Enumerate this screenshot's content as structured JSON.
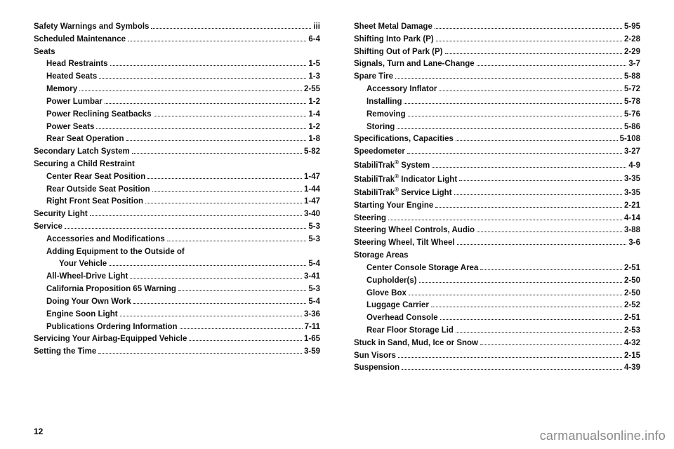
{
  "pageNumber": "12",
  "watermark": "carmanualsonline.info",
  "left": [
    {
      "t": "Safety Warnings and Symbols",
      "p": "iii",
      "i": 0
    },
    {
      "t": "Scheduled Maintenance",
      "p": "6-4",
      "i": 0
    },
    {
      "t": "Seats",
      "i": 0
    },
    {
      "t": "Head Restraints",
      "p": "1-5",
      "i": 1
    },
    {
      "t": "Heated Seats",
      "p": "1-3",
      "i": 1
    },
    {
      "t": "Memory",
      "p": "2-55",
      "i": 1
    },
    {
      "t": "Power Lumbar",
      "p": "1-2",
      "i": 1
    },
    {
      "t": "Power Reclining Seatbacks",
      "p": "1-4",
      "i": 1
    },
    {
      "t": "Power Seats",
      "p": "1-2",
      "i": 1
    },
    {
      "t": "Rear Seat Operation",
      "p": "1-8",
      "i": 1
    },
    {
      "t": "Secondary Latch System",
      "p": "5-82",
      "i": 0
    },
    {
      "t": "Securing a Child Restraint",
      "i": 0
    },
    {
      "t": "Center Rear Seat Position",
      "p": "1-47",
      "i": 1
    },
    {
      "t": "Rear Outside Seat Position",
      "p": "1-44",
      "i": 1
    },
    {
      "t": "Right Front Seat Position",
      "p": "1-47",
      "i": 1
    },
    {
      "t": "Security Light",
      "p": "3-40",
      "i": 0
    },
    {
      "t": "Service",
      "p": "5-3",
      "i": 0
    },
    {
      "t": "Accessories and Modifications",
      "p": "5-3",
      "i": 1
    },
    {
      "t": "Adding Equipment to the Outside of",
      "i": 1
    },
    {
      "t": "Your Vehicle",
      "p": "5-4",
      "i": 2
    },
    {
      "t": "All-Wheel-Drive Light",
      "p": "3-41",
      "i": 1
    },
    {
      "t": "California Proposition 65 Warning",
      "p": "5-3",
      "i": 1
    },
    {
      "t": "Doing Your Own Work",
      "p": "5-4",
      "i": 1
    },
    {
      "t": "Engine Soon Light",
      "p": "3-36",
      "i": 1
    },
    {
      "t": "Publications Ordering Information",
      "p": "7-11",
      "i": 1
    },
    {
      "t": "Servicing Your Airbag-Equipped Vehicle",
      "p": "1-65",
      "i": 0
    },
    {
      "t": "Setting the Time",
      "p": "3-59",
      "i": 0
    }
  ],
  "right": [
    {
      "t": "Sheet Metal Damage",
      "p": "5-95",
      "i": 0
    },
    {
      "t": "Shifting Into Park (P)",
      "p": "2-28",
      "i": 0
    },
    {
      "t": "Shifting Out of Park (P)",
      "p": "2-29",
      "i": 0
    },
    {
      "t": "Signals, Turn and Lane-Change",
      "p": "3-7",
      "i": 0
    },
    {
      "t": "Spare Tire",
      "p": "5-88",
      "i": 0
    },
    {
      "t": "Accessory Inflator",
      "p": "5-72",
      "i": 1
    },
    {
      "t": "Installing",
      "p": "5-78",
      "i": 1
    },
    {
      "t": "Removing",
      "p": "5-76",
      "i": 1
    },
    {
      "t": "Storing",
      "p": "5-86",
      "i": 1
    },
    {
      "t": "Specifications, Capacities",
      "p": "5-108",
      "i": 0
    },
    {
      "t": "Speedometer",
      "p": "3-27",
      "i": 0
    },
    {
      "t": "StabiliTrak® System",
      "p": "4-9",
      "i": 0
    },
    {
      "t": "StabiliTrak® Indicator Light",
      "p": "3-35",
      "i": 0
    },
    {
      "t": "StabiliTrak® Service Light",
      "p": "3-35",
      "i": 0
    },
    {
      "t": "Starting Your Engine",
      "p": "2-21",
      "i": 0
    },
    {
      "t": "Steering",
      "p": "4-14",
      "i": 0
    },
    {
      "t": "Steering Wheel Controls, Audio",
      "p": "3-88",
      "i": 0
    },
    {
      "t": "Steering Wheel, Tilt Wheel",
      "p": "3-6",
      "i": 0
    },
    {
      "t": "Storage Areas",
      "i": 0
    },
    {
      "t": "Center Console Storage Area",
      "p": "2-51",
      "i": 1
    },
    {
      "t": "Cupholder(s)",
      "p": "2-50",
      "i": 1
    },
    {
      "t": "Glove Box",
      "p": "2-50",
      "i": 1
    },
    {
      "t": "Luggage Carrier",
      "p": "2-52",
      "i": 1
    },
    {
      "t": "Overhead Console",
      "p": "2-51",
      "i": 1
    },
    {
      "t": "Rear Floor Storage Lid",
      "p": "2-53",
      "i": 1
    },
    {
      "t": "Stuck in Sand, Mud, Ice or Snow",
      "p": "4-32",
      "i": 0
    },
    {
      "t": "Sun Visors",
      "p": "2-15",
      "i": 0
    },
    {
      "t": "Suspension",
      "p": "4-39",
      "i": 0
    }
  ]
}
